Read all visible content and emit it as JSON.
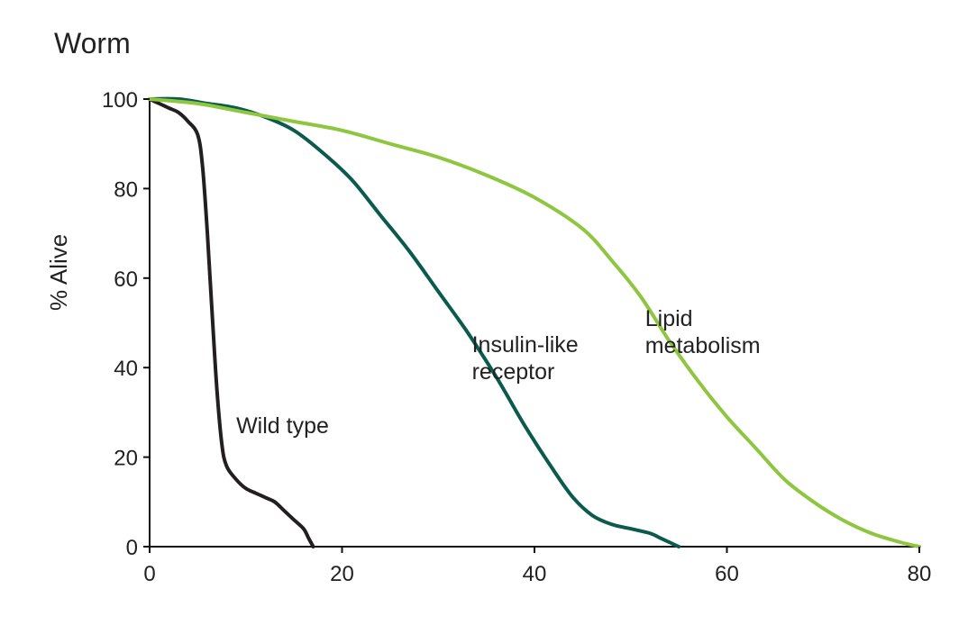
{
  "chart_data": {
    "type": "line",
    "title": "Worm",
    "xlabel": "",
    "ylabel": "% Alive",
    "xlim": [
      0,
      80
    ],
    "ylim": [
      0,
      100
    ],
    "xticks": [
      0,
      20,
      40,
      60,
      80
    ],
    "yticks": [
      0,
      20,
      40,
      60,
      80,
      100
    ],
    "grid": false,
    "colors": {
      "axis": "#111111",
      "text": "#222222"
    },
    "series": [
      {
        "name": "Wild type",
        "color": "#231f20",
        "x": [
          0,
          1,
          2,
          3,
          4,
          5,
          5.5,
          6,
          6.5,
          7,
          7.5,
          8,
          9,
          10,
          11,
          12,
          13,
          14,
          15,
          16,
          16.5,
          17
        ],
        "y": [
          100,
          99,
          98,
          97,
          95,
          92,
          85,
          70,
          52,
          35,
          23,
          18,
          15,
          13,
          12,
          11,
          10,
          8,
          6,
          4,
          2,
          0
        ]
      },
      {
        "name": "Insulin-like receptor",
        "color": "#0a5a4e",
        "x": [
          0,
          3,
          6,
          9,
          12,
          15,
          18,
          21,
          24,
          27,
          30,
          33,
          36,
          39,
          42,
          44,
          46,
          48,
          50,
          52,
          53,
          54,
          55
        ],
        "y": [
          100,
          100,
          99,
          98,
          96,
          93,
          88,
          82,
          74,
          66,
          57,
          48,
          38,
          27,
          17,
          11,
          7,
          5,
          4,
          3,
          2,
          1,
          0
        ]
      },
      {
        "name": "Lipid metabolism",
        "color": "#8ec63f",
        "x": [
          0,
          5,
          10,
          15,
          20,
          25,
          30,
          35,
          40,
          45,
          48,
          51,
          54,
          57,
          60,
          63,
          66,
          69,
          72,
          75,
          78,
          80
        ],
        "y": [
          100,
          99,
          97,
          95,
          93,
          90,
          87,
          83,
          78,
          71,
          64,
          56,
          46,
          37,
          29,
          22,
          15,
          10,
          6,
          3,
          1,
          0
        ]
      }
    ],
    "annotations": [
      {
        "lines": [
          "Wild type"
        ],
        "x": 9.0,
        "y": 30
      },
      {
        "lines": [
          "Insulin-like",
          "receptor"
        ],
        "x": 33.5,
        "y": 48
      },
      {
        "lines": [
          "Lipid",
          "metabolism"
        ],
        "x": 51.5,
        "y": 54
      }
    ]
  }
}
